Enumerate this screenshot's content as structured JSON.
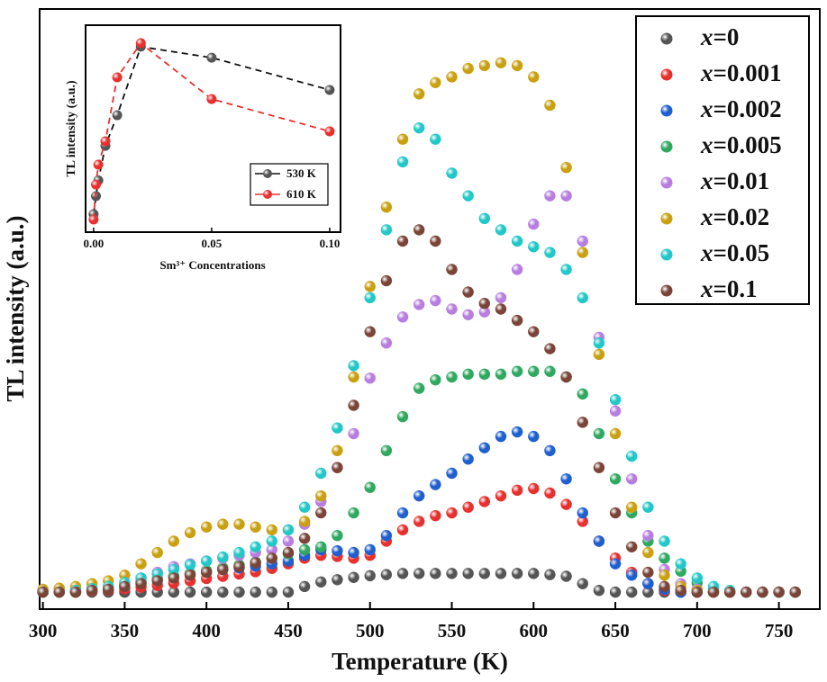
{
  "chart_data": [
    {
      "type": "scatter",
      "x_label": "Temperature (K)",
      "y_label": "TL intensity (a.u.)",
      "x": [
        300,
        310,
        320,
        330,
        340,
        350,
        360,
        370,
        380,
        390,
        400,
        410,
        420,
        430,
        440,
        450,
        460,
        470,
        480,
        490,
        500,
        510,
        520,
        530,
        540,
        550,
        560,
        570,
        580,
        590,
        600,
        610,
        620,
        630,
        640,
        650,
        660,
        670,
        680,
        690,
        700,
        710,
        720,
        730,
        740,
        750,
        760
      ],
      "xlim": [
        298,
        775
      ],
      "ylim": [
        -3,
        103
      ],
      "xticks": [
        300,
        350,
        400,
        450,
        500,
        550,
        600,
        650,
        700,
        750
      ],
      "legend": "upper right",
      "series": [
        {
          "name": "x=0",
          "color": "#555555",
          "values": [
            0,
            0,
            0,
            0,
            0,
            0,
            0,
            0,
            0,
            0,
            0,
            0,
            0,
            0,
            0,
            0,
            1,
            1.8,
            2.2,
            2.6,
            2.9,
            3.1,
            3.3,
            3.3,
            3.3,
            3.3,
            3.3,
            3.3,
            3.3,
            3.3,
            3.3,
            3.1,
            2.8,
            1.5,
            0.3,
            0,
            0,
            0,
            0,
            0,
            0,
            0,
            0,
            0,
            0,
            0,
            0
          ]
        },
        {
          "name": "x=0.001",
          "color": "#e8302e",
          "values": [
            0,
            0,
            0,
            0.2,
            0.4,
            0.6,
            0.9,
            1.2,
            1.6,
            2,
            2.4,
            2.8,
            3.2,
            3.6,
            4.2,
            5,
            6,
            6.5,
            6.3,
            6,
            6.5,
            9,
            11,
            12.5,
            13.5,
            14,
            15,
            16,
            17,
            18,
            18.3,
            17.5,
            15.5,
            12.5,
            9,
            6,
            3.5,
            1.5,
            0.3,
            0,
            0,
            0,
            0,
            0,
            0,
            0,
            0
          ]
        },
        {
          "name": "x=0.002",
          "color": "#1f5fd0",
          "values": [
            0,
            0,
            0,
            0.3,
            0.7,
            1.2,
            1.8,
            2.3,
            2.8,
            3.2,
            3.6,
            4,
            4.3,
            4.6,
            5,
            5.5,
            6.5,
            7.5,
            7.3,
            7,
            7.5,
            10,
            14,
            17,
            19,
            21,
            23.5,
            25.5,
            27.5,
            28.3,
            27.5,
            25,
            20,
            14,
            9,
            5,
            3,
            1.5,
            0.5,
            0,
            0,
            0,
            0,
            0,
            0,
            0,
            0
          ]
        },
        {
          "name": "x=0.005",
          "color": "#2fa860",
          "values": [
            0,
            0,
            0,
            0.3,
            0.8,
            1.3,
            1.8,
            2.3,
            2.8,
            3.3,
            3.8,
            4.3,
            4.8,
            5.3,
            6,
            6.8,
            7.5,
            8,
            10,
            14,
            18.5,
            25,
            31,
            36,
            37.5,
            38,
            38.5,
            38.5,
            38.5,
            39,
            39,
            39,
            38,
            35,
            28,
            20,
            14,
            9,
            6,
            3.7,
            1.6,
            0.5,
            0,
            0,
            0,
            0,
            0
          ]
        },
        {
          "name": "x=0.01",
          "color": "#b77ee0",
          "values": [
            0.3,
            0.4,
            0.5,
            0.7,
            1,
            1.5,
            2.5,
            3.5,
            4.5,
            5,
            5.5,
            6,
            6.5,
            7,
            7.5,
            9,
            12,
            16,
            22,
            28,
            37.8,
            44,
            48.6,
            50.8,
            51.5,
            50,
            49,
            49.5,
            52,
            57,
            65,
            70,
            70,
            62,
            45,
            32,
            20,
            10,
            4,
            1.5,
            0.5,
            0,
            0,
            0,
            0,
            0,
            0
          ]
        },
        {
          "name": "x=0.02",
          "color": "#c9a010",
          "values": [
            0.5,
            0.7,
            1,
            1.5,
            2,
            3,
            5,
            7,
            9,
            10.5,
            11.5,
            12,
            12,
            11.5,
            11,
            11,
            12.5,
            17,
            25,
            38,
            54,
            68,
            80,
            88,
            90,
            91,
            92.5,
            93,
            93.5,
            93,
            91,
            86,
            75,
            60,
            42,
            28,
            15,
            7,
            3,
            1,
            0.3,
            0,
            0,
            0,
            0,
            0,
            0
          ]
        },
        {
          "name": "x=0.05",
          "color": "#22c8c8",
          "values": [
            0,
            0,
            0.3,
            0.6,
            1,
            1.7,
            2.5,
            3.2,
            4,
            4.8,
            5.5,
            6.2,
            7,
            8,
            9,
            11,
            15,
            21,
            29,
            40,
            52,
            64,
            76,
            82,
            80,
            74,
            70,
            66,
            64,
            62,
            61,
            60,
            57,
            52,
            44,
            34,
            24,
            15,
            9,
            5,
            2.5,
            1,
            0.3,
            0,
            0,
            0,
            0
          ]
        },
        {
          "name": "x=0.1",
          "color": "#7a4438",
          "values": [
            0,
            0,
            0,
            0.3,
            0.5,
            1,
            1.5,
            2,
            2.5,
            3,
            3.5,
            4,
            4.5,
            5.2,
            6,
            7,
            9.5,
            14,
            22,
            33,
            46,
            55,
            62,
            64,
            62,
            57,
            53,
            51,
            50,
            48,
            46,
            43,
            38,
            30,
            22,
            14,
            8,
            3.5,
            1,
            0.3,
            0,
            0,
            0,
            0,
            0,
            0,
            0
          ]
        }
      ]
    },
    {
      "type": "line",
      "x_label": "Sm³⁺ Concentrations",
      "y_label": "TL intensity (a.u.)",
      "x": [
        0,
        0.001,
        0.002,
        0.005,
        0.01,
        0.02,
        0.05,
        0.1
      ],
      "xlim": [
        -0.0034,
        0.1046
      ],
      "ylim": [
        0,
        100
      ],
      "xticks": [
        {
          "value": 0,
          "label": "0.00"
        },
        {
          "value": 0.05,
          "label": "0.05"
        },
        {
          "value": 0.1,
          "label": "0.10"
        }
      ],
      "legend": "lower right",
      "series": [
        {
          "name": "530 K",
          "color": "#555555",
          "values": [
            8.7,
            17.4,
            25,
            41.7,
            56.5,
            89.6,
            84.3,
            68.7
          ]
        },
        {
          "name": "610 K",
          "color": "#e8302e",
          "values": [
            6.1,
            23,
            32.6,
            43.9,
            74.8,
            91.3,
            64.3,
            48.7
          ]
        }
      ]
    }
  ]
}
